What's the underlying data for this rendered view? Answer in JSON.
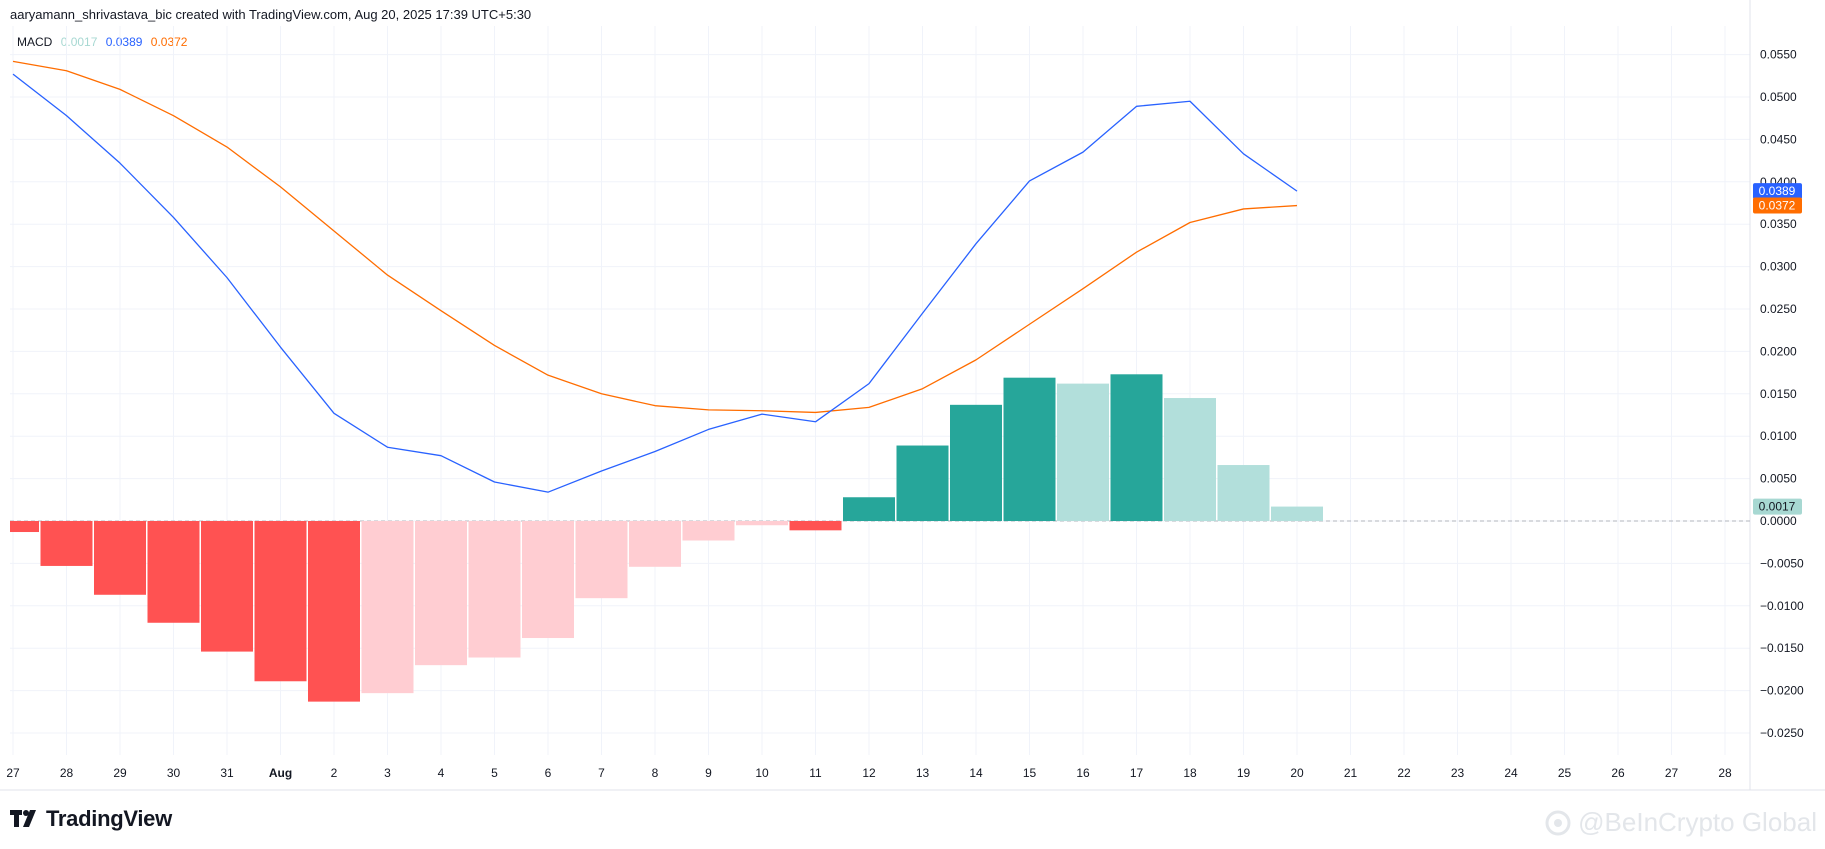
{
  "header": {
    "credit": "aaryamann_shrivastava_bic created with TradingView.com, Aug 20, 2025 17:39 UTC+5:30"
  },
  "legend": {
    "label": "MACD",
    "histogram_value": "0.0017",
    "macd_value": "0.0389",
    "signal_value": "0.0372"
  },
  "branding": {
    "name": "TradingView",
    "watermark": "@BeInCrypto Global"
  },
  "colors": {
    "macd_line": "#2962ff",
    "signal_line": "#ff6d00",
    "hist_pos_strong": "#26a69a",
    "hist_pos_weak": "#b2dfdb",
    "hist_neg_strong": "#ff5252",
    "hist_neg_weak": "#ffcdd2",
    "legend_hist": "#a7d8d2"
  },
  "chart_data": {
    "type": "line",
    "title": "MACD",
    "x": [
      "27",
      "28",
      "29",
      "30",
      "31",
      "Aug",
      "2",
      "3",
      "4",
      "5",
      "6",
      "7",
      "8",
      "9",
      "10",
      "11",
      "12",
      "13",
      "14",
      "15",
      "16",
      "17",
      "18",
      "19",
      "20"
    ],
    "x_axis_ticks": [
      "27",
      "28",
      "29",
      "30",
      "31",
      "Aug",
      "2",
      "3",
      "4",
      "5",
      "6",
      "7",
      "8",
      "9",
      "10",
      "11",
      "12",
      "13",
      "14",
      "15",
      "16",
      "17",
      "18",
      "19",
      "20",
      "21",
      "22",
      "23",
      "24",
      "25",
      "26",
      "27",
      "28"
    ],
    "series": [
      {
        "name": "MACD",
        "values": [
          0.0527,
          0.0478,
          0.0422,
          0.0358,
          0.0287,
          0.0205,
          0.0127,
          0.0087,
          0.0077,
          0.0046,
          0.0034,
          0.0059,
          0.0082,
          0.0108,
          0.0126,
          0.0117,
          0.0162,
          0.0245,
          0.0327,
          0.0401,
          0.0435,
          0.0489,
          0.0495,
          0.0433,
          0.0389
        ]
      },
      {
        "name": "Signal",
        "values": [
          0.0542,
          0.0531,
          0.0509,
          0.0478,
          0.0441,
          0.0394,
          0.0342,
          0.029,
          0.0248,
          0.0207,
          0.0172,
          0.015,
          0.0136,
          0.0131,
          0.013,
          0.0128,
          0.0134,
          0.0156,
          0.019,
          0.0232,
          0.0274,
          0.0317,
          0.0352,
          0.0368,
          0.0372
        ]
      }
    ],
    "histogram": {
      "values": [
        -0.0013,
        -0.0053,
        -0.0087,
        -0.012,
        -0.0154,
        -0.0189,
        -0.0213,
        -0.0203,
        -0.017,
        -0.0161,
        -0.0138,
        -0.0091,
        -0.0054,
        -0.0023,
        -0.0005,
        -0.0011,
        0.0028,
        0.0089,
        0.0137,
        0.0169,
        0.0162,
        0.0173,
        0.0145,
        0.0066,
        0.0017
      ],
      "colors": [
        "neg_strong",
        "neg_strong",
        "neg_strong",
        "neg_strong",
        "neg_strong",
        "neg_strong",
        "neg_strong",
        "neg_weak",
        "neg_weak",
        "neg_weak",
        "neg_weak",
        "neg_weak",
        "neg_weak",
        "neg_weak",
        "neg_weak",
        "neg_strong",
        "pos_strong",
        "pos_strong",
        "pos_strong",
        "pos_strong",
        "pos_weak",
        "pos_strong",
        "pos_weak",
        "pos_weak",
        "pos_weak"
      ]
    },
    "y_ticks": [
      "0.0550",
      "0.0500",
      "0.0450",
      "0.0400",
      "0.0350",
      "0.0300",
      "0.0250",
      "0.0200",
      "0.0150",
      "0.0100",
      "0.0050",
      "0.0000",
      "−0.0050",
      "−0.0100",
      "−0.0150",
      "−0.0200",
      "−0.0250"
    ],
    "y_tick_values": [
      0.055,
      0.05,
      0.045,
      0.04,
      0.035,
      0.03,
      0.025,
      0.02,
      0.015,
      0.01,
      0.005,
      0.0,
      -0.005,
      -0.01,
      -0.015,
      -0.02,
      -0.025
    ],
    "ylim": [
      -0.0275,
      0.0575
    ],
    "price_labels": [
      {
        "text": "0.0389",
        "value": 0.0389,
        "color": "macd"
      },
      {
        "text": "0.0372",
        "value": 0.0372,
        "color": "signal"
      },
      {
        "text": "0.0017",
        "value": 0.0017,
        "color": "hist"
      }
    ],
    "grid": true,
    "zero_line": "dashed"
  }
}
